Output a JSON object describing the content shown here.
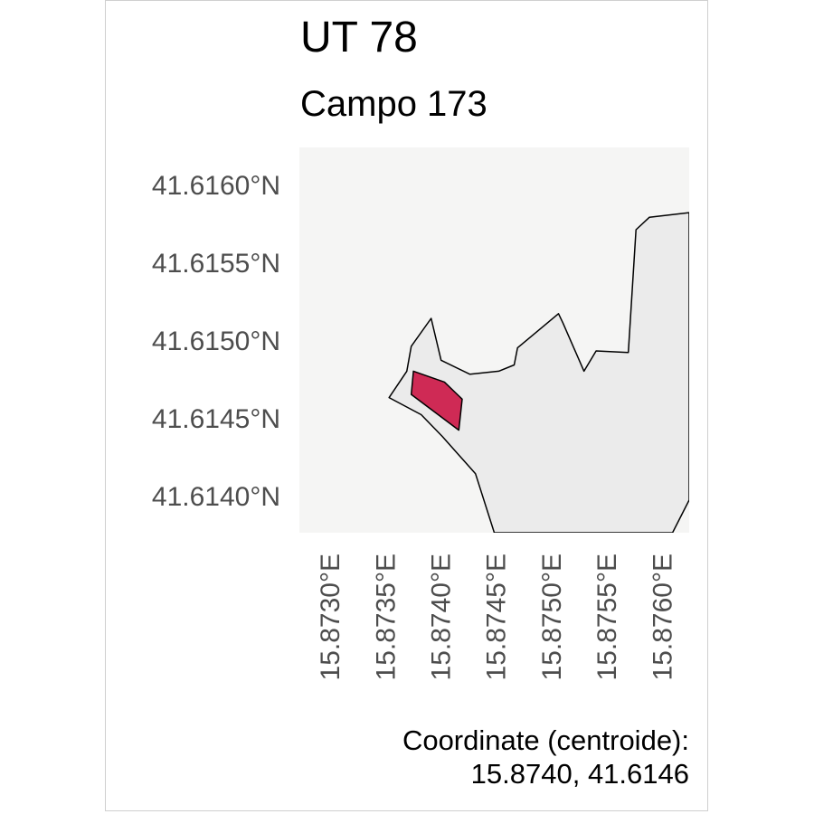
{
  "map": {
    "title": "UT 78",
    "subtitle": "Campo 173",
    "caption_line1": "Coordinate (centroide):",
    "caption_line2": "15.8740, 41.6146",
    "y_ticks": [
      {
        "value": 41.616,
        "label": "41.6160°N"
      },
      {
        "value": 41.6155,
        "label": "41.6155°N"
      },
      {
        "value": 41.615,
        "label": "41.6150°N"
      },
      {
        "value": 41.6145,
        "label": "41.6145°N"
      },
      {
        "value": 41.614,
        "label": "41.6140°N"
      }
    ],
    "x_ticks": [
      {
        "value": 15.873,
        "label": "15.8730°E"
      },
      {
        "value": 15.8735,
        "label": "15.8735°E"
      },
      {
        "value": 15.874,
        "label": "15.8740°E"
      },
      {
        "value": 15.8745,
        "label": "15.8745°E"
      },
      {
        "value": 15.875,
        "label": "15.8750°E"
      },
      {
        "value": 15.8755,
        "label": "15.8755°E"
      },
      {
        "value": 15.876,
        "label": "15.8760°E"
      }
    ],
    "extent": {
      "lon_min": 15.87273,
      "lon_max": 15.87625,
      "lat_min": 41.61376,
      "lat_max": 41.61624
    },
    "colors": {
      "background": "#f5f5f4",
      "region_fill": "#ebebeb",
      "region_stroke": "#000000",
      "field_fill": "#cf2a55",
      "field_stroke": "#000000",
      "tick_text": "#4d4d4d"
    },
    "region_polygon": [
      [
        15.87354,
        41.61463
      ],
      [
        15.8737,
        41.6148
      ],
      [
        15.87374,
        41.61496
      ],
      [
        15.87392,
        41.61514
      ],
      [
        15.87401,
        41.61487
      ],
      [
        15.87427,
        41.61478
      ],
      [
        15.87453,
        41.6148
      ],
      [
        15.87467,
        41.61484
      ],
      [
        15.8747,
        41.61495
      ],
      [
        15.87507,
        41.61517
      ],
      [
        15.87511,
        41.61511
      ],
      [
        15.8753,
        41.6148
      ],
      [
        15.87541,
        41.61493
      ],
      [
        15.8757,
        41.61492
      ],
      [
        15.87577,
        41.61571
      ],
      [
        15.87589,
        41.61579
      ],
      [
        15.87625,
        41.61582
      ],
      [
        15.87625,
        41.61397
      ],
      [
        15.8761,
        41.61376
      ],
      [
        15.87449,
        41.61376
      ],
      [
        15.87432,
        41.61414
      ],
      [
        15.87402,
        41.61438
      ],
      [
        15.87383,
        41.61452
      ]
    ],
    "field_polygon": [
      [
        15.87376,
        41.6148
      ],
      [
        15.87404,
        41.61473
      ],
      [
        15.8742,
        41.61462
      ],
      [
        15.87417,
        41.61442
      ],
      [
        15.87374,
        41.61465
      ]
    ]
  }
}
